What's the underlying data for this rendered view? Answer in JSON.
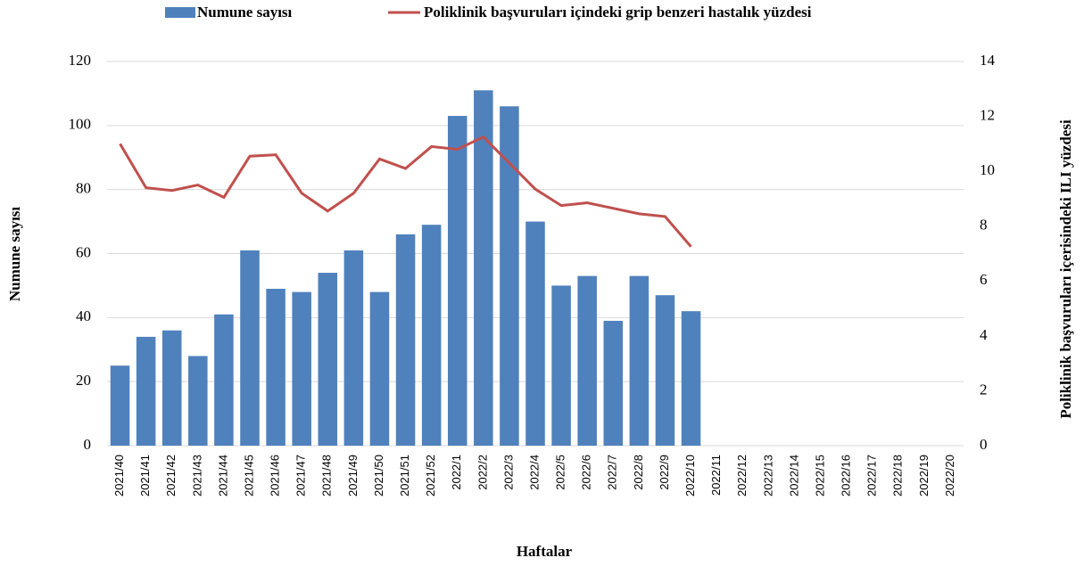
{
  "chart_data": {
    "type": "combo",
    "x_label": "Haftalar",
    "y_label": "Numune sayısı",
    "y2_label": "Poliklinik başvuruları içerisindeki ILI yüzdesi",
    "categories": [
      "2021/40",
      "2021/41",
      "2021/42",
      "2021/43",
      "2021/44",
      "2021/45",
      "2021/46",
      "2021/47",
      "2021/48",
      "2021/49",
      "2021/50",
      "2021/51",
      "2021/52",
      "2022/1",
      "2022/2",
      "2022/3",
      "2022/4",
      "2022/5",
      "2022/6",
      "2022/7",
      "2022/8",
      "2022/9",
      "2022/10",
      "2022/11",
      "2022/12",
      "2022/13",
      "2022/14",
      "2022/15",
      "2022/16",
      "2022/17",
      "2022/18",
      "2022/19",
      "2022/20"
    ],
    "series": [
      {
        "name": "Numune sayısı",
        "type": "bar",
        "color": "#4f81bd",
        "values": [
          25,
          34,
          36,
          28,
          41,
          61,
          49,
          48,
          54,
          61,
          48,
          66,
          69,
          103,
          111,
          106,
          70,
          50,
          53,
          39,
          53,
          47,
          42,
          null,
          null,
          null,
          null,
          null,
          null,
          null,
          null,
          null,
          null
        ]
      },
      {
        "name": "Poliklinik başvuruları içindeki grip benzeri hastalık yüzdesi",
        "type": "line",
        "color": "#c0504d",
        "axis": "y2",
        "values": [
          11.0,
          9.4,
          9.3,
          9.5,
          9.05,
          10.55,
          10.6,
          9.2,
          8.55,
          9.2,
          10.45,
          10.1,
          10.9,
          10.8,
          11.25,
          10.3,
          9.35,
          8.75,
          8.85,
          8.65,
          8.45,
          8.35,
          7.25,
          null,
          null,
          null,
          null,
          null,
          null,
          null,
          null,
          null,
          null
        ]
      }
    ],
    "ylim": [
      0,
      120
    ],
    "yticks": [
      0,
      20,
      40,
      60,
      80,
      100,
      120
    ],
    "y2lim": [
      0,
      14
    ],
    "y2ticks": [
      0,
      2,
      4,
      6,
      8,
      10,
      12,
      14
    ],
    "grid": true,
    "legend": "top"
  }
}
